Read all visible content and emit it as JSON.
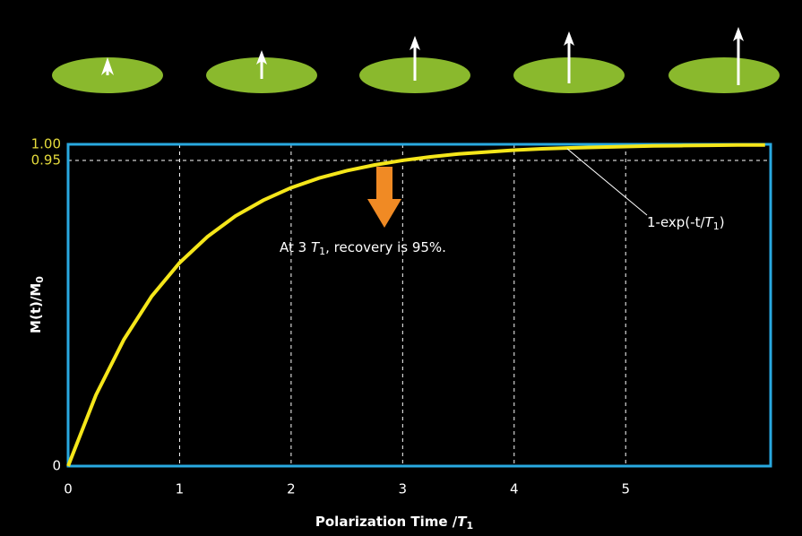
{
  "chart_data": {
    "type": "line",
    "x": [
      0,
      0.25,
      0.5,
      0.75,
      1,
      1.25,
      1.5,
      1.75,
      2,
      2.25,
      2.5,
      2.75,
      3,
      3.25,
      3.5,
      3.75,
      4,
      4.25,
      4.5,
      4.75,
      5,
      5.25,
      5.5,
      5.75,
      6,
      6.25
    ],
    "values": [
      0,
      0.221,
      0.393,
      0.528,
      0.632,
      0.713,
      0.777,
      0.826,
      0.865,
      0.895,
      0.918,
      0.936,
      0.95,
      0.961,
      0.97,
      0.976,
      0.982,
      0.986,
      0.989,
      0.991,
      0.993,
      0.995,
      0.996,
      0.997,
      0.998,
      0.998
    ],
    "color": "#f5e61a",
    "xlim": [
      0,
      6.3
    ],
    "xticks": [
      0,
      1,
      2,
      3,
      4,
      5
    ],
    "ylim": [
      0,
      1
    ],
    "yticks": [
      0,
      0.95,
      {
        "value": 1,
        "label": "1.00"
      }
    ],
    "grid": true,
    "x_label": [
      "Polarization Time /",
      "T",
      "1"
    ],
    "y_label": [
      "M(t)/M",
      "0"
    ],
    "curve_label": [
      "1-exp(-t/",
      "T",
      "1",
      ")"
    ],
    "annotation": [
      "At 3 ",
      "T",
      "1",
      ", recovery is 95%."
    ]
  }
}
